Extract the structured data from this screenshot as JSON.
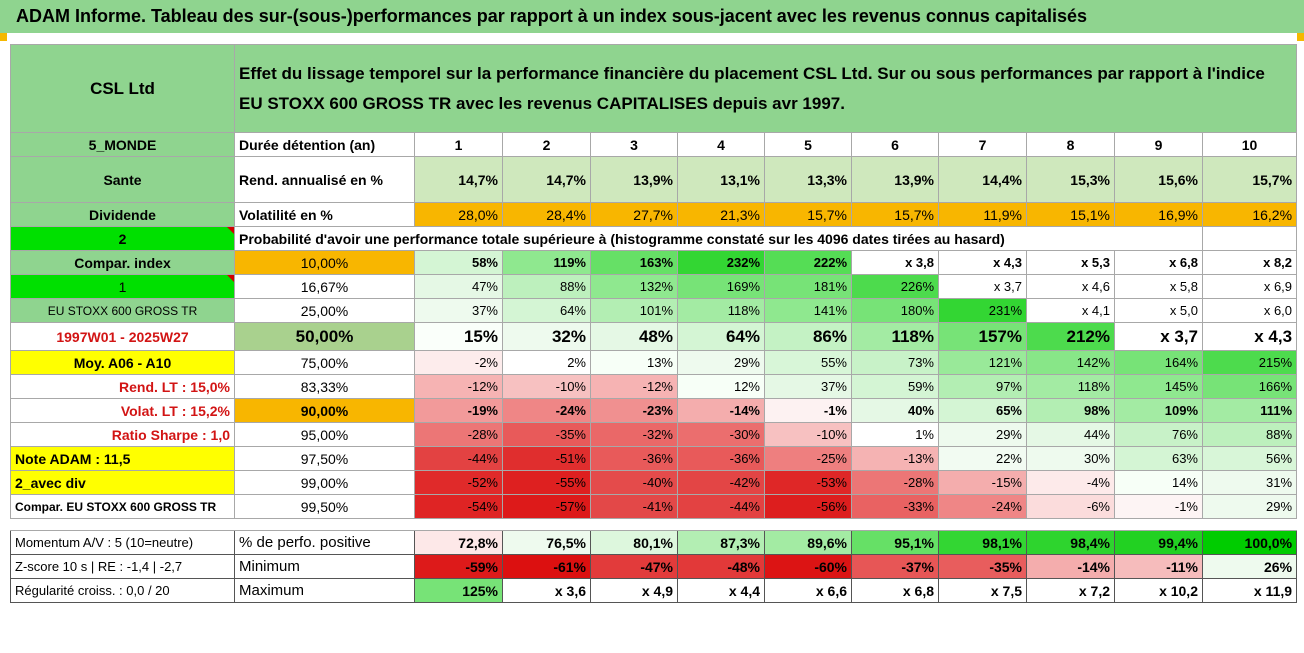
{
  "title": "ADAM Informe. Tableau des sur-(sous-)performances par rapport à un index sous-jacent avec les revenus connus capitalisés",
  "header": {
    "company": "CSL Ltd",
    "description": "Effet du lissage temporel sur la performance financière du placement CSL Ltd. Sur ou sous performances par rapport à l'indice EU STOXX 600 GROSS TR avec les revenus CAPITALISES depuis avr 1997."
  },
  "rows": [
    {
      "label": "5_MONDE",
      "metric": "Durée détention (an)",
      "values": [
        "1",
        "2",
        "3",
        "4",
        "5",
        "6",
        "7",
        "8",
        "9",
        "10"
      ],
      "labelBg": "#8fd48f",
      "labelCls": "c b",
      "metricCls": "l b",
      "valCls": "c b",
      "bgs": []
    },
    {
      "label": "Sante",
      "metric": "Rend. annualisé en %",
      "values": [
        "14,7%",
        "14,7%",
        "13,9%",
        "13,1%",
        "13,3%",
        "13,9%",
        "14,4%",
        "15,3%",
        "15,6%",
        "15,7%"
      ],
      "labelBg": "#8fd48f",
      "labelCls": "c b",
      "metricCls": "l b",
      "valCls": "b",
      "bgs": [
        "#cfe8bd",
        "#cfe8bd",
        "#cfe8bd",
        "#cfe8bd",
        "#cfe8bd",
        "#cfe8bd",
        "#cfe8bd",
        "#cfe8bd",
        "#cfe8bd",
        "#cfe8bd"
      ],
      "rowCls": "tall"
    },
    {
      "label": "Dividende",
      "metric": "Volatilité en %",
      "values": [
        "28,0%",
        "28,4%",
        "27,7%",
        "21,3%",
        "15,7%",
        "15,7%",
        "11,9%",
        "15,1%",
        "16,9%",
        "16,2%"
      ],
      "labelBg": "#8fd48f",
      "labelCls": "c b",
      "metricCls": "l b",
      "valCls": "",
      "bgs": [
        "#f8b600",
        "#f8b600",
        "#f8b600",
        "#f8b600",
        "#f8b600",
        "#f8b600",
        "#f8b600",
        "#f8b600",
        "#f8b600",
        "#f8b600"
      ]
    }
  ],
  "prob_label": "2",
  "prob_text": "Probabilité d'avoir une performance totale supérieure à (histogramme constaté sur les 4096 dates tirées au hasard)",
  "grid": [
    {
      "label": "Compar. index",
      "labelBg": "#8fd48f",
      "labelCls": "c b",
      "q": "10,00%",
      "qBg": "#f8b600",
      "qCls": "c",
      "bold": true,
      "values": [
        "58%",
        "119%",
        "163%",
        "232%",
        "222%",
        "x 3,8",
        "x 4,3",
        "x 5,3",
        "x 6,8",
        "x 8,2"
      ],
      "bgs": [
        "#d4f5d4",
        "#8fe88f",
        "#66e066",
        "#33d633",
        "#55dd55",
        "",
        "",
        "",
        "",
        ""
      ]
    },
    {
      "label": "1",
      "labelBg": "#00e000",
      "labelCls": "c tri",
      "q": "16,67%",
      "qBg": "",
      "qCls": "c",
      "bold": false,
      "values": [
        "47%",
        "88%",
        "132%",
        "169%",
        "181%",
        "226%",
        "x 3,7",
        "x 4,6",
        "x 5,8",
        "x 6,9"
      ],
      "bgs": [
        "#e5f8e5",
        "#bdf0bd",
        "#8fe88f",
        "#77e377",
        "#77e377",
        "#4ddb4d",
        "",
        "",
        "",
        ""
      ]
    },
    {
      "label": "EU STOXX 600 GROSS TR",
      "labelBg": "#8fd48f",
      "labelCls": "c small",
      "q": "25,00%",
      "qBg": "",
      "qCls": "c",
      "bold": false,
      "values": [
        "37%",
        "64%",
        "101%",
        "118%",
        "141%",
        "180%",
        "231%",
        "x 4,1",
        "x 5,0",
        "x 6,0"
      ],
      "bgs": [
        "#eefaee",
        "#d4f5d4",
        "#b3eeb3",
        "#a3eba3",
        "#8fe88f",
        "#77e377",
        "#33d633",
        "",
        "",
        ""
      ]
    },
    {
      "label": "1997W01 - 2025W27",
      "labelBg": "",
      "labelCls": "c b red",
      "q": "50,00%",
      "qBg": "#a9d18e",
      "qCls": "c b big",
      "bold": true,
      "big": true,
      "values": [
        "15%",
        "32%",
        "48%",
        "64%",
        "86%",
        "118%",
        "157%",
        "212%",
        "x 3,7",
        "x 4,3"
      ],
      "bgs": [
        "#fafffa",
        "#eefaee",
        "#e5f8e5",
        "#d4f5d4",
        "#c4f2c4",
        "#a3eba3",
        "#77e377",
        "#4ddb4d",
        "",
        ""
      ]
    },
    {
      "label": "Moy. A06 - A10",
      "labelBg": "#ffff00",
      "labelCls": "c b",
      "q": "75,00%",
      "qBg": "",
      "qCls": "c",
      "bold": false,
      "values": [
        "-2%",
        "2%",
        "13%",
        "29%",
        "55%",
        "73%",
        "121%",
        "142%",
        "164%",
        "215%"
      ],
      "bgs": [
        "#fdecec",
        "",
        "#f7fff7",
        "#eefaee",
        "#d8f6d8",
        "#c8f2c8",
        "#99e999",
        "#88e688",
        "#77e377",
        "#4ddb4d"
      ]
    },
    {
      "label": "Rend. LT :    15,0%",
      "labelBg": "",
      "labelCls": "r b red",
      "q": "83,33%",
      "qBg": "",
      "qCls": "c",
      "bold": false,
      "values": [
        "-12%",
        "-10%",
        "-12%",
        "12%",
        "37%",
        "59%",
        "97%",
        "118%",
        "145%",
        "166%"
      ],
      "bgs": [
        "#f6b3b3",
        "#f7c1c1",
        "#f6b3b3",
        "#f7fff7",
        "#e5f8e5",
        "#d4f5d4",
        "#b3eeb3",
        "#a3eba3",
        "#8fe88f",
        "#77e377"
      ]
    },
    {
      "label": "Volat. LT :    15,2%",
      "labelBg": "",
      "labelCls": "r b red",
      "q": "90,00%",
      "qBg": "#f8b600",
      "qCls": "c b",
      "bold": true,
      "values": [
        "-19%",
        "-24%",
        "-23%",
        "-14%",
        "-1%",
        "40%",
        "65%",
        "98%",
        "109%",
        "111%"
      ],
      "bgs": [
        "#f29a9a",
        "#ef8686",
        "#f09090",
        "#f4adad",
        "#fdf2f2",
        "#e5f8e5",
        "#d4f5d4",
        "#b3eeb3",
        "#a3eba3",
        "#a3eba3"
      ]
    },
    {
      "label": "Ratio Sharpe :    1,0",
      "labelBg": "",
      "labelCls": "r b red",
      "q": "95,00%",
      "qBg": "",
      "qCls": "c",
      "bold": false,
      "values": [
        "-28%",
        "-35%",
        "-32%",
        "-30%",
        "-10%",
        "1%",
        "29%",
        "44%",
        "76%",
        "88%"
      ],
      "bgs": [
        "#ec7676",
        "#e85a5a",
        "#ea6868",
        "#eb6e6e",
        "#f7c1c1",
        "",
        "#eefaee",
        "#e5f8e5",
        "#c8f2c8",
        "#bdf0bd"
      ]
    },
    {
      "label": "Note ADAM : 11,5",
      "labelBg": "#ffff00",
      "labelCls": "l b",
      "q": "97,50%",
      "qBg": "",
      "qCls": "c",
      "bold": false,
      "values": [
        "-44%",
        "-51%",
        "-36%",
        "-36%",
        "-25%",
        "-13%",
        "22%",
        "30%",
        "63%",
        "56%"
      ],
      "bgs": [
        "#e34242",
        "#e02e2e",
        "#e85a5a",
        "#e85a5a",
        "#ee7f7f",
        "#f5b3b3",
        "#f2fbf2",
        "#eefaee",
        "#d4f5d4",
        "#d8f6d8"
      ]
    },
    {
      "label": "2_avec div",
      "labelBg": "#ffff00",
      "labelCls": "l b",
      "q": "99,00%",
      "qBg": "",
      "qCls": "c",
      "bold": false,
      "values": [
        "-52%",
        "-55%",
        "-40%",
        "-42%",
        "-53%",
        "-28%",
        "-15%",
        "-4%",
        "14%",
        "31%"
      ],
      "bgs": [
        "#e02a2a",
        "#de2020",
        "#e44b4b",
        "#e34545",
        "#df2727",
        "#ec7676",
        "#f4adad",
        "#fdeaea",
        "#f7fff7",
        "#eefaee"
      ]
    },
    {
      "label": "Compar. EU STOXX 600 GROSS TR",
      "labelBg": "",
      "labelCls": "l b small",
      "q": "99,50%",
      "qBg": "",
      "qCls": "c",
      "bold": false,
      "values": [
        "-54%",
        "-57%",
        "-41%",
        "-44%",
        "-56%",
        "-33%",
        "-24%",
        "-6%",
        "-1%",
        "29%"
      ],
      "bgs": [
        "#df2424",
        "#dd1a1a",
        "#e34848",
        "#e34242",
        "#dd1e1e",
        "#e96262",
        "#ef8686",
        "#fbdcdc",
        "#fdf4f4",
        "#eefaee"
      ]
    }
  ],
  "stats": [
    {
      "label": "Momentum A/V : 5 (10=neutre)",
      "metric": "% de perfo. positive",
      "bold": true,
      "values": [
        "72,8%",
        "76,5%",
        "80,1%",
        "87,3%",
        "89,6%",
        "95,1%",
        "98,1%",
        "98,4%",
        "99,4%",
        "100,0%"
      ],
      "bgs": [
        "#fde8e8",
        "#eefaee",
        "#ddf7dd",
        "#b3eeb3",
        "#a3eba3",
        "#66e066",
        "#33d633",
        "#2ed42e",
        "#22d122",
        "#00cc00"
      ]
    },
    {
      "label": "Z-score 10 s | RE : -1,4 | -2,7",
      "metric": "Minimum",
      "bold": true,
      "values": [
        "-59%",
        "-61%",
        "-47%",
        "-48%",
        "-60%",
        "-37%",
        "-35%",
        "-14%",
        "-11%",
        "26%"
      ],
      "bgs": [
        "#dd1a1a",
        "#dc1010",
        "#e23b3b",
        "#e23939",
        "#dc1414",
        "#e75656",
        "#e85d5d",
        "#f4adad",
        "#f6bcbc",
        "#eefaee"
      ]
    },
    {
      "label": "Régularité croiss. : 0,0 / 20",
      "metric": "Maximum",
      "bold": true,
      "values": [
        "125%",
        "x 3,6",
        "x 4,9",
        "x 4,4",
        "x 6,6",
        "x 6,8",
        "x 7,5",
        "x 7,2",
        "x 10,2",
        "x 11,9"
      ],
      "bgs": [
        "#77e377",
        "",
        "",
        "",
        "",
        "",
        "",
        "",
        "",
        ""
      ]
    }
  ]
}
